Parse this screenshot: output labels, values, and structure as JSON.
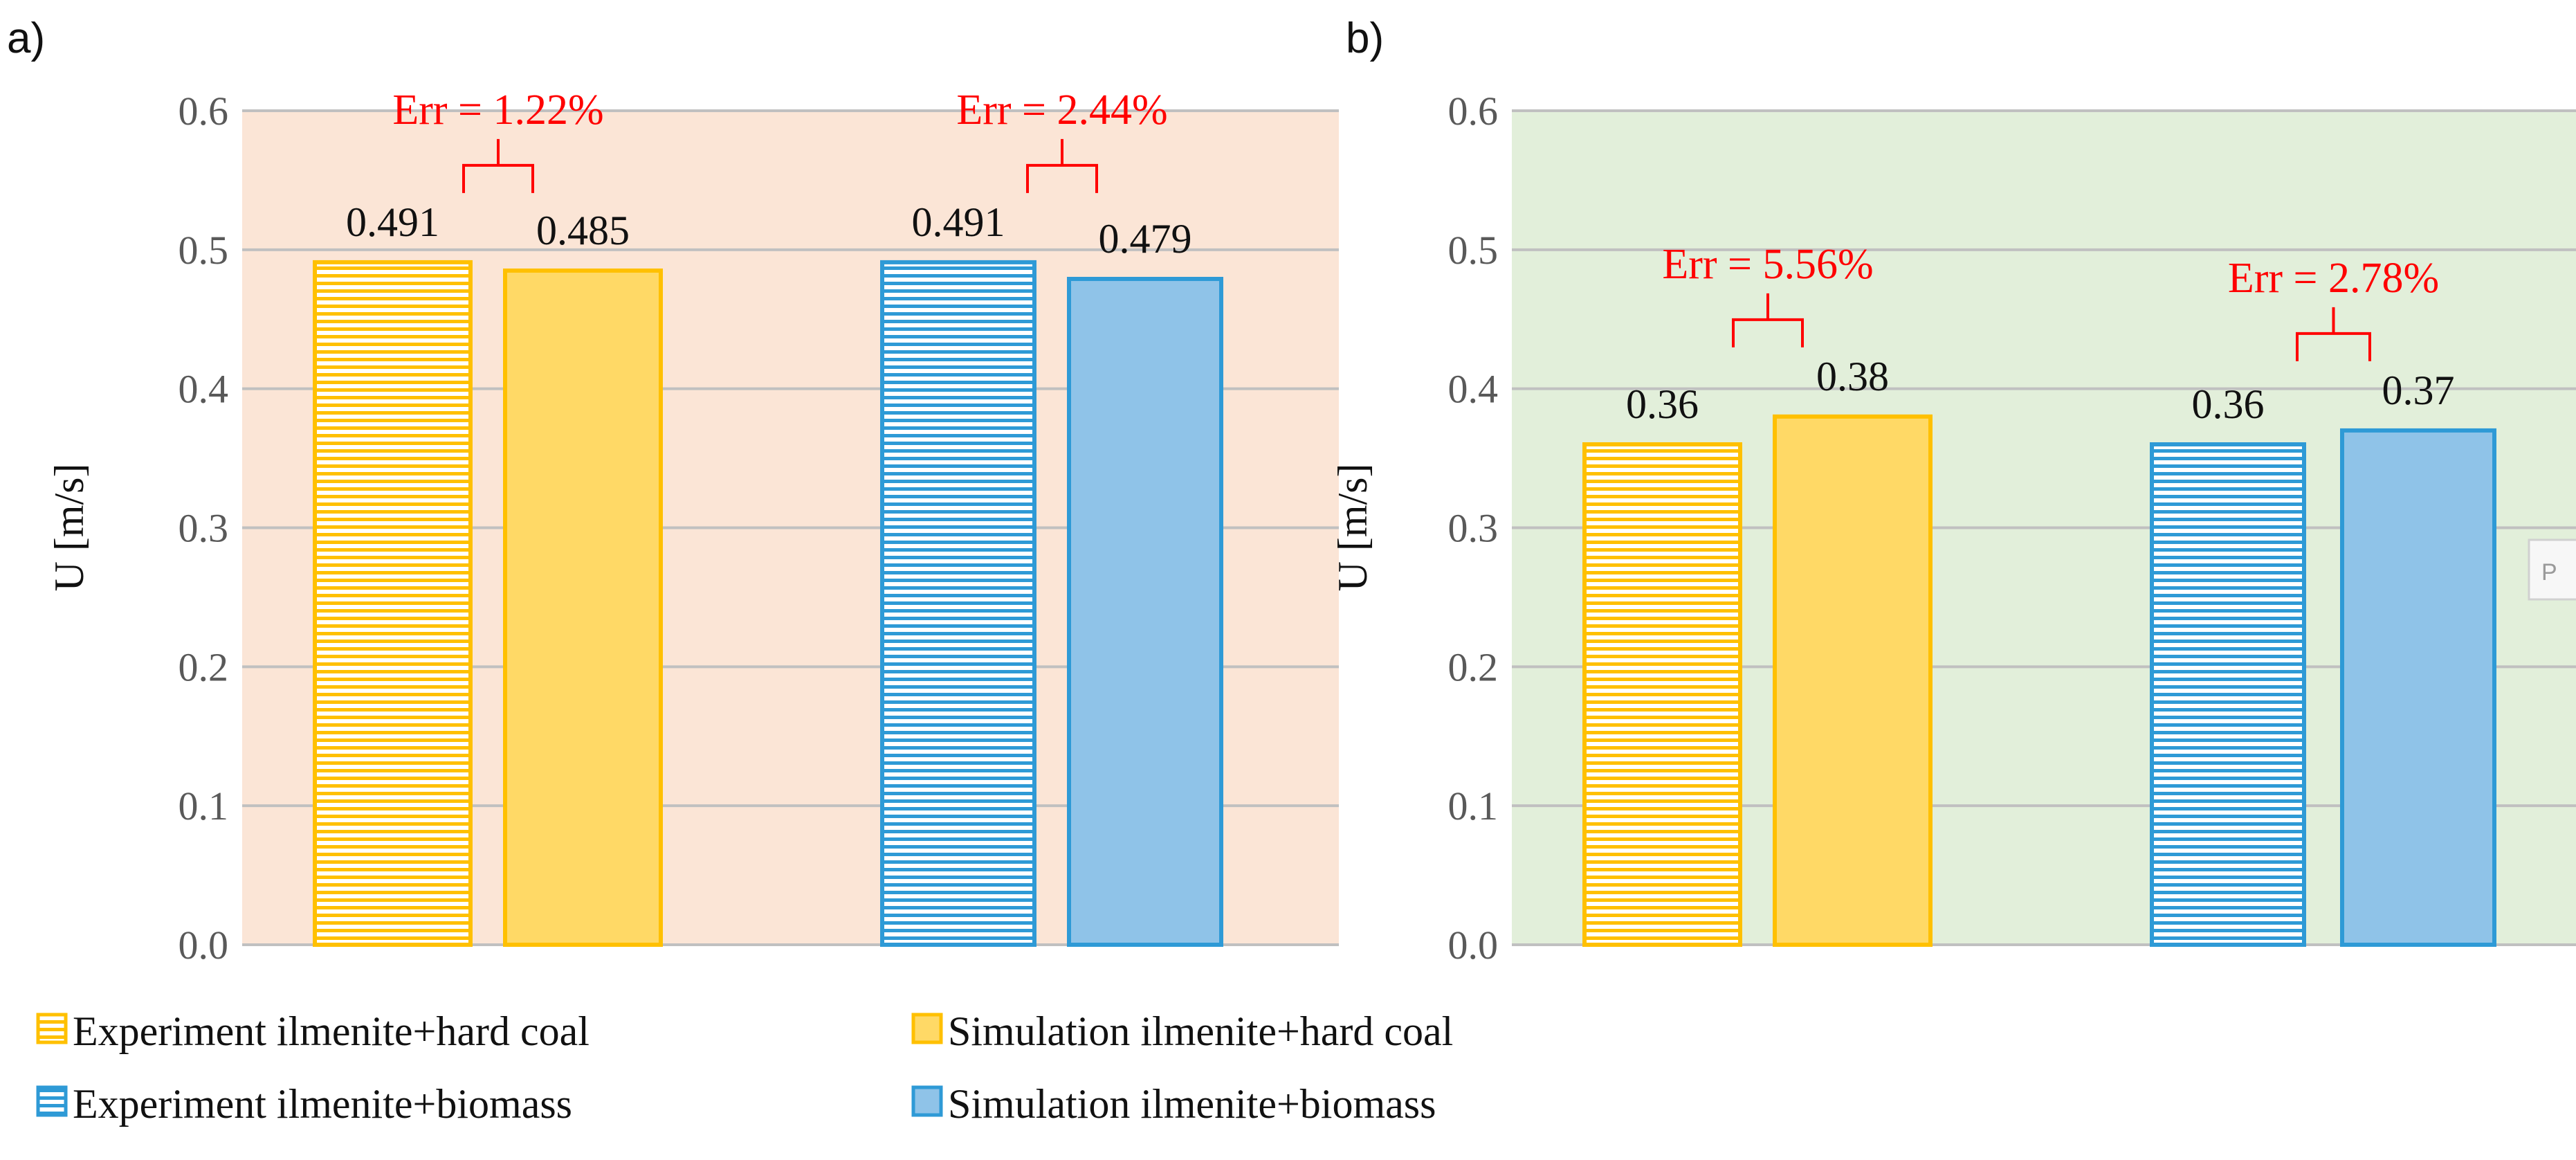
{
  "chart_data": [
    {
      "type": "bar",
      "panel_label": "a)",
      "background": "#fbe5d6",
      "ylabel": "U [m/s]",
      "xlabel": "",
      "ylim": [
        0,
        0.6
      ],
      "yticks": [
        "0.0",
        "0.1",
        "0.2",
        "0.3",
        "0.4",
        "0.5",
        "0.6"
      ],
      "grid": true,
      "categories": [
        "ilmenite+hard coal",
        "ilmenite+biomass"
      ],
      "series": [
        {
          "name": "Experiment",
          "values": [
            0.491,
            0.491
          ],
          "labels": [
            "0.491",
            "0.491"
          ]
        },
        {
          "name": "Simulation",
          "values": [
            0.485,
            0.479
          ],
          "labels": [
            "0.485",
            "0.479"
          ]
        }
      ],
      "annotations": [
        "Err = 1.22%",
        "Err = 2.44%"
      ]
    },
    {
      "type": "bar",
      "panel_label": "b)",
      "background": "#e2efda",
      "ylabel": "U [m/s]",
      "xlabel": "",
      "ylim": [
        0,
        0.6
      ],
      "yticks": [
        "0.0",
        "0.1",
        "0.2",
        "0.3",
        "0.4",
        "0.5",
        "0.6"
      ],
      "grid": true,
      "categories": [
        "ilmenite+hard coal",
        "ilmenite+biomass"
      ],
      "series": [
        {
          "name": "Experiment",
          "values": [
            0.36,
            0.36
          ],
          "labels": [
            "0.36",
            "0.36"
          ]
        },
        {
          "name": "Simulation",
          "values": [
            0.38,
            0.37
          ],
          "labels": [
            "0.38",
            "0.37"
          ]
        }
      ],
      "annotations": [
        "Err = 5.56%",
        "Err = 2.78%"
      ],
      "fragment_text": "P"
    }
  ],
  "legend": {
    "placement": "bottom-left",
    "items": [
      {
        "label": "Experiment ilmenite+hard coal",
        "style": "striped",
        "color": "#ffc000",
        "fill": "#ffc000"
      },
      {
        "label": "Simulation ilmenite+hard coal",
        "style": "solid",
        "color": "#ffc000",
        "fill": "#ffd966"
      },
      {
        "label": "Experiment ilmenite+biomass",
        "style": "striped",
        "color": "#2e9ad6",
        "fill": "#2e9ad6"
      },
      {
        "label": "Simulation ilmenite+biomass",
        "style": "solid",
        "color": "#2e9ad6",
        "fill": "#8fc3e8"
      }
    ]
  },
  "colors": {
    "grid": "#c0c0c0",
    "error_text": "#ff0000",
    "hardcoal_edge": "#ffc000",
    "hardcoal_fill": "#ffd966",
    "biomass_edge": "#2e9ad6",
    "biomass_fill": "#8fc3e8"
  }
}
